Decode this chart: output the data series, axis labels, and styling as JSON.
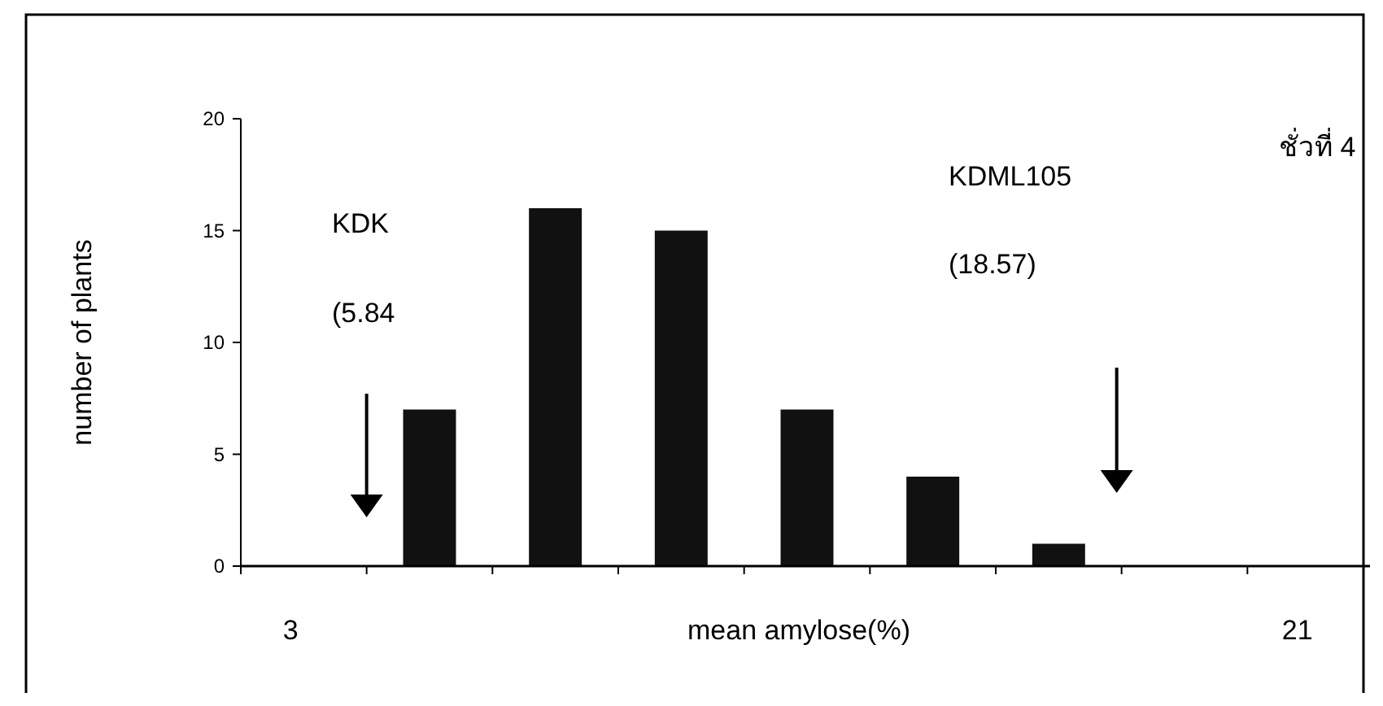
{
  "chart_data": {
    "type": "bar",
    "xlabel": "mean amylose(%)",
    "ylabel": "number of plants",
    "categories": [
      "3",
      null,
      null,
      null,
      null,
      null,
      null,
      null,
      "21"
    ],
    "values": [
      0,
      7,
      16,
      15,
      7,
      4,
      1,
      0,
      0
    ],
    "color": "#111111",
    "ylim": [
      0,
      20
    ],
    "yticks": [
      0,
      5,
      10,
      15,
      20
    ],
    "grid": false,
    "annotations": [
      "KDK",
      "(5.84",
      "KDML105",
      "(18.57)",
      "ชั่วที่ 4"
    ]
  }
}
